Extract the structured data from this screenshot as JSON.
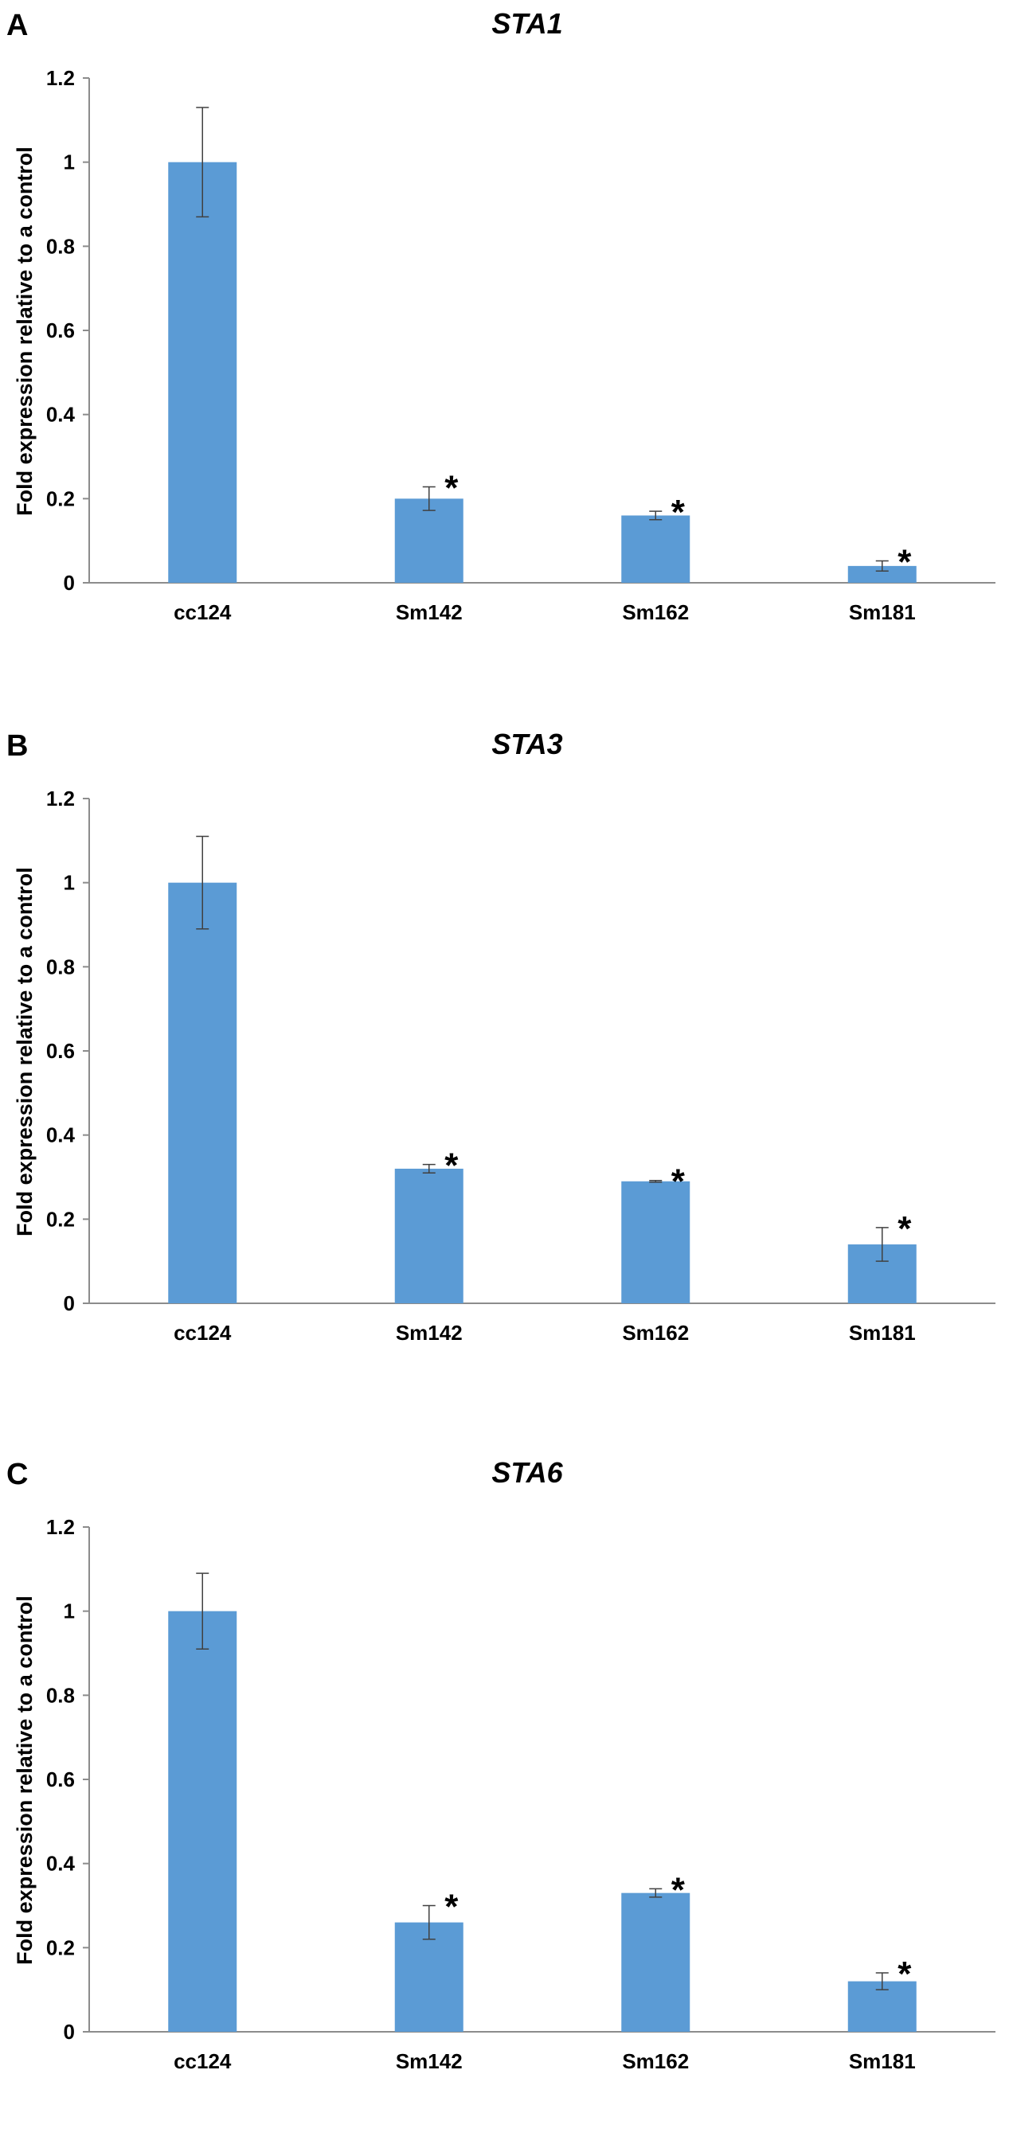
{
  "chart_data": [
    {
      "type": "bar",
      "panel_label": "A",
      "title": "STA1",
      "ylabel": "Fold expression  relative to a control",
      "xlabel": "",
      "ylim": [
        0,
        1.2
      ],
      "yticks": [
        "0",
        "0.2",
        "0.4",
        "0.6",
        "0.8",
        "1",
        "1.2"
      ],
      "categories": [
        "cc124",
        "Sm142",
        "Sm162",
        "Sm181"
      ],
      "values": [
        1.0,
        0.2,
        0.16,
        0.04
      ],
      "errors": [
        0.13,
        0.028,
        0.01,
        0.012
      ],
      "significance": [
        "",
        "*",
        "*",
        "*"
      ],
      "bar_color": "#5b9bd5",
      "grid": false
    },
    {
      "type": "bar",
      "panel_label": "B",
      "title": "STA3",
      "ylabel": "Fold expression  relative to a control",
      "xlabel": "",
      "ylim": [
        0,
        1.2
      ],
      "yticks": [
        "0",
        "0.2",
        "0.4",
        "0.6",
        "0.8",
        "1",
        "1.2"
      ],
      "categories": [
        "cc124",
        "Sm142",
        "Sm162",
        "Sm181"
      ],
      "values": [
        1.0,
        0.32,
        0.29,
        0.14
      ],
      "errors": [
        0.11,
        0.01,
        0.002,
        0.04
      ],
      "significance": [
        "",
        "*",
        "*",
        "*"
      ],
      "bar_color": "#5b9bd5",
      "grid": false
    },
    {
      "type": "bar",
      "panel_label": "C",
      "title": "STA6",
      "ylabel": "Fold expression  relative to a control",
      "xlabel": "",
      "ylim": [
        0,
        1.2
      ],
      "yticks": [
        "0",
        "0.2",
        "0.4",
        "0.6",
        "0.8",
        "1",
        "1.2"
      ],
      "categories": [
        "cc124",
        "Sm142",
        "Sm162",
        "Sm181"
      ],
      "values": [
        1.0,
        0.26,
        0.33,
        0.12
      ],
      "errors": [
        0.09,
        0.04,
        0.01,
        0.02
      ],
      "significance": [
        "",
        "*",
        "*",
        "*"
      ],
      "bar_color": "#5b9bd5",
      "grid": false
    }
  ]
}
